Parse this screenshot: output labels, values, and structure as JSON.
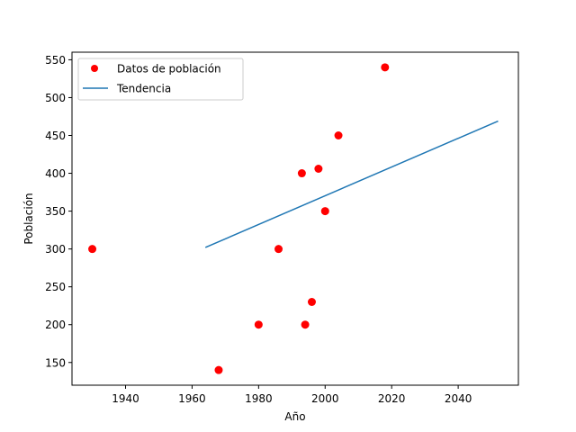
{
  "chart_data": {
    "type": "scatter",
    "title": "",
    "xlabel": "Año",
    "ylabel": "Población",
    "xlim": [
      1923.9,
      2058.1
    ],
    "ylim": [
      120,
      560
    ],
    "xticks": [
      1940,
      1960,
      1980,
      2000,
      2020,
      2040
    ],
    "yticks": [
      150,
      200,
      250,
      300,
      350,
      400,
      450,
      500,
      550
    ],
    "grid": false,
    "legend_position": "top-left",
    "series": [
      {
        "name": "Datos de población",
        "kind": "scatter",
        "color": "#ff0000",
        "points": [
          {
            "x": 1930,
            "y": 300
          },
          {
            "x": 1968,
            "y": 140
          },
          {
            "x": 1980,
            "y": 200
          },
          {
            "x": 1986,
            "y": 300
          },
          {
            "x": 1993,
            "y": 400
          },
          {
            "x": 1994,
            "y": 200
          },
          {
            "x": 1996,
            "y": 230
          },
          {
            "x": 1998,
            "y": 406
          },
          {
            "x": 2000,
            "y": 350
          },
          {
            "x": 2004,
            "y": 450
          },
          {
            "x": 2018,
            "y": 540
          }
        ]
      },
      {
        "name": "Tendencia",
        "kind": "line",
        "color": "#1f77b4",
        "points": [
          {
            "x": 1964,
            "y": 302
          },
          {
            "x": 2052,
            "y": 469
          }
        ]
      }
    ]
  }
}
